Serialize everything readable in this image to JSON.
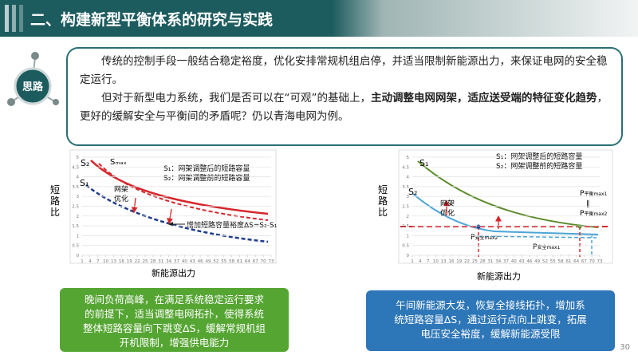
{
  "header": {
    "title": "二、构建新型平衡体系的研究与实践"
  },
  "intro": {
    "badge": "思路",
    "paragraphs": [
      [
        {
          "text": "传统的控制手段一般结合稳定裕度，优化安排常规机组启停，并适当限制新能源出力，来保证电网的安全稳定运行。",
          "bold": false
        }
      ],
      [
        {
          "text": "但对于新型电力系统，我们是否可以在“可观”的基础上，",
          "bold": false
        },
        {
          "text": "主动调整电网网架，适应送受端的特征变化趋势",
          "bold": true
        },
        {
          "text": "，更好的缓解安全与平衡间的矛盾呢？仍以青海电网为例。",
          "bold": false
        }
      ]
    ]
  },
  "left_chart": {
    "y_label": "短路比",
    "x_label": "新能源出力",
    "yticks": [
      0,
      0.5,
      1,
      1.5,
      2,
      2.5,
      3,
      3.5,
      4,
      4.5,
      5
    ],
    "xticks": [
      1,
      4,
      7,
      10,
      13,
      16,
      19,
      22,
      25,
      28,
      31,
      34,
      37,
      40,
      43,
      46,
      49,
      52,
      55,
      58,
      61,
      64,
      67,
      70,
      73
    ],
    "curve_labels": {
      "s2": "S₂",
      "smax": "Sₘₐₓ",
      "s1": "S₁"
    },
    "legend": [
      "S₁：网架调整后的短路容量",
      "S₂：网架调整前的短路容量"
    ],
    "optimize": [
      "网架",
      "优化"
    ],
    "annotation": "增加短路容量裕度ΔS=S₂-S₁"
  },
  "right_chart": {
    "y_label": "短路比",
    "x_label": "新能源出力",
    "yticks": [
      0,
      0.5,
      1,
      1.5,
      2,
      2.5,
      3,
      3.5,
      4,
      4.5,
      5
    ],
    "xticks": [
      1,
      4,
      7,
      10,
      13,
      16,
      19,
      22,
      25,
      28,
      31,
      34,
      37,
      40,
      43,
      46,
      49,
      52,
      55,
      58,
      61,
      64,
      67,
      70,
      73
    ],
    "curve_labels": {
      "s1": "S₁",
      "s2": "S₂"
    },
    "legend": [
      "S₁：网架调整后的短路容量",
      "S₂：网架调整前的短路容量"
    ],
    "optimize": [
      "网架",
      "优化"
    ],
    "points": {
      "balance_max1": {
        "base": "P",
        "sub": "平衡max1"
      },
      "equal": "‖",
      "balance_max2": {
        "base": "P",
        "sub": "平衡max2"
      },
      "safety_max2": {
        "base": "P",
        "sub": "安全max2"
      },
      "safety_max1": {
        "base": "P",
        "sub": "安全max1"
      }
    }
  },
  "notes": {
    "left": [
      "晚间负荷高峰，在满足系统稳定运行要求",
      "的前提下，适当调整电网拓扑，使得系统",
      "整体短路容量向下跳变ΔS，缓解常规机组",
      "开机限制，增强供电能力"
    ],
    "right": [
      "午间新能源大发，恢复全接线拓扑，增加系",
      "统短路容量ΔS，通过运行点向上跳变，拓展",
      "电压安全裕度，缓解新能源受限"
    ]
  },
  "page_number": "30"
}
